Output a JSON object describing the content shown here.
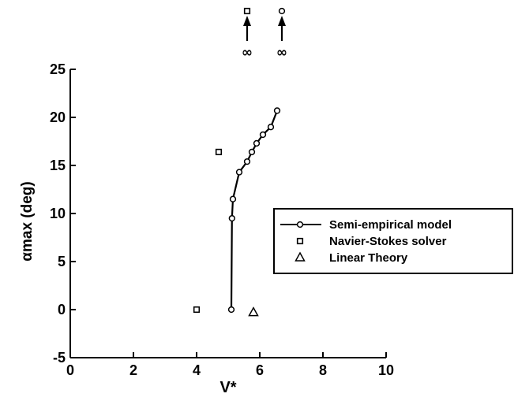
{
  "chart_data": {
    "type": "scatter",
    "xlabel": "V*",
    "ylabel": "αmax (deg)",
    "xlim": [
      0,
      10
    ],
    "ylim": [
      -5,
      25
    ],
    "xticks": [
      0,
      2,
      4,
      6,
      8,
      10
    ],
    "yticks": [
      -5,
      0,
      5,
      10,
      15,
      20,
      25
    ],
    "legend_position": "right",
    "series": [
      {
        "name": "Semi-empirical model",
        "style": "line-circle",
        "x": [
          5.1,
          5.12,
          5.15,
          5.35,
          5.6,
          5.75,
          5.9,
          6.1,
          6.35,
          6.55
        ],
        "y": [
          0,
          9.5,
          11.5,
          14.3,
          15.4,
          16.4,
          17.3,
          18.2,
          19.0,
          20.7
        ]
      },
      {
        "name": "Navier-Stokes solver",
        "style": "square",
        "x": [
          4.0,
          4.7
        ],
        "y": [
          0,
          16.4
        ]
      },
      {
        "name": "Linear Theory",
        "style": "triangle",
        "x": [
          5.8
        ],
        "y": [
          -0.3
        ]
      }
    ],
    "annotations": [
      {
        "text": "∞",
        "x": 5.6,
        "marker": "square"
      },
      {
        "text": "∞",
        "x": 6.7,
        "marker": "circle"
      }
    ]
  }
}
